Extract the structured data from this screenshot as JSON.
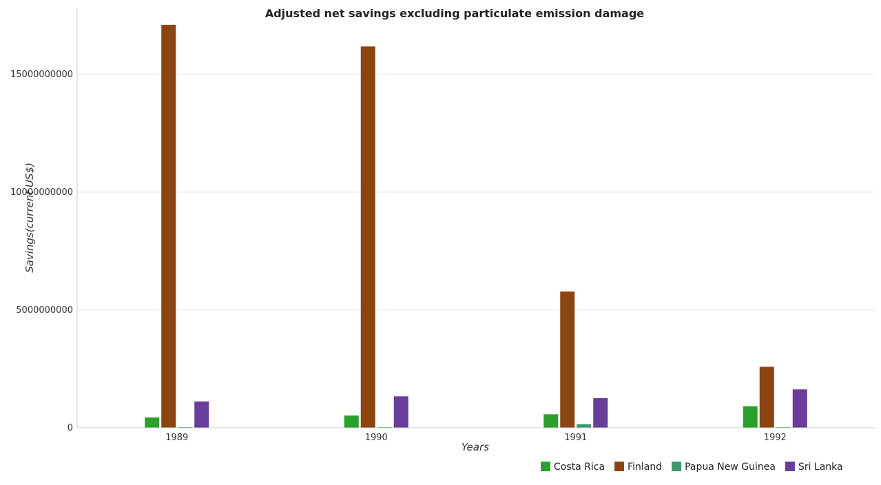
{
  "chart_data": {
    "type": "bar",
    "title": "Adjusted net savings excluding particulate emission damage",
    "xlabel": "Years",
    "ylabel": "Savings(current US$)",
    "categories": [
      "1989",
      "1990",
      "1991",
      "1992"
    ],
    "yticks": [
      0,
      5000000000,
      10000000000,
      15000000000
    ],
    "ytick_labels": [
      "0",
      "5000000000",
      "10000000000",
      "15000000000"
    ],
    "ylim": [
      0,
      17800000000
    ],
    "grid": true,
    "legend_position": "bottom-right",
    "series": [
      {
        "name": "Costa Rica",
        "color": "#2ca02c",
        "values": [
          440000000,
          520000000,
          575000000,
          915000000
        ]
      },
      {
        "name": "Finland",
        "color": "#8b4513",
        "values": [
          17100000000,
          16180000000,
          5780000000,
          2590000000
        ]
      },
      {
        "name": "Papua New Guinea",
        "color": "#3a9a6a",
        "values": [
          10000000,
          25000000,
          155000000,
          25000000
        ]
      },
      {
        "name": "Sri Lanka",
        "color": "#6a3d9a",
        "values": [
          1120000000,
          1335000000,
          1260000000,
          1630000000
        ]
      }
    ]
  }
}
